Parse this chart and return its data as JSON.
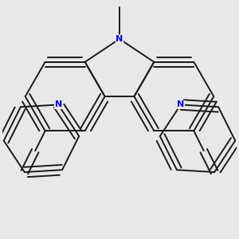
{
  "background_color": "#e8e8e8",
  "bond_color": "#1a1a1a",
  "nitrogen_color": "#0000ee",
  "line_width": 1.4,
  "figsize": [
    3.0,
    3.0
  ],
  "dpi": 100,
  "xlim": [
    -2.8,
    2.8
  ],
  "ylim": [
    -2.8,
    2.8
  ]
}
